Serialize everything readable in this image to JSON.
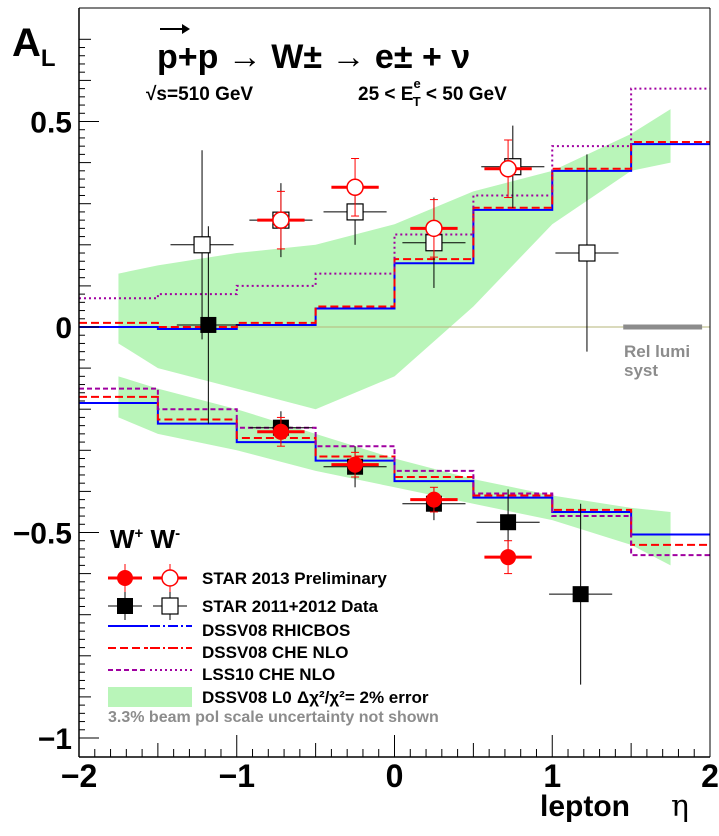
{
  "chart_data": {
    "type": "scatter",
    "title": "p+p → W± → e± + ν",
    "energy": "√s=510 GeV",
    "et_cut": "25 < E",
    "et_sup": "e",
    "et_sub": "T",
    "et_tail": " < 50 GeV",
    "ylabel": "A",
    "ylabel_sub": "L",
    "xlabel": "lepton",
    "xlabel_sym": "η",
    "xlim": [
      -2,
      2
    ],
    "ylim": [
      -1.0,
      0.7
    ],
    "xticks": [
      -2,
      -1,
      0,
      1,
      2
    ],
    "xtick_labels": [
      "−2",
      "−1",
      "0",
      "1",
      "2"
    ],
    "yticks": [
      -1,
      -0.5,
      0,
      0.5
    ],
    "ytick_labels": [
      "−1",
      "−0.5",
      "0",
      "0.5"
    ],
    "legend_header": "W",
    "legend_header_sup_plus": "+",
    "legend_header_2": " W",
    "legend_header_sup_minus": "-",
    "rel_lumi_label_1": "Rel lumi",
    "rel_lumi_label_2": "syst",
    "rel_lumi_y": 0.0,
    "rel_lumi_x": [
      1.45,
      1.95
    ],
    "footnote": "3.3% beam pol scale uncertainty not shown",
    "colors": {
      "star2013": "#ff0000",
      "star2011": "#000000",
      "rhicbos": "#0000ff",
      "che": "#ff0000",
      "lss10": "#a000a0",
      "band": "#b9f5b9",
      "rel_lumi": "#8c8c8c"
    },
    "legend": [
      {
        "key": "star2013",
        "label": "STAR 2013 Preliminary"
      },
      {
        "key": "star2011",
        "label": "STAR 2011+2012 Data"
      },
      {
        "key": "rhicbos",
        "label": "DSSV08  RHICBOS"
      },
      {
        "key": "che",
        "label": "DSSV08  CHE NLO"
      },
      {
        "key": "lss10",
        "label": "LSS10 CHE NLO"
      },
      {
        "key": "band",
        "label": "DSSV08 L0",
        "extra": "Δχ²/χ²= 2% error"
      }
    ],
    "series": [
      {
        "name": "STAR 2013 Preliminary",
        "charge": "W+",
        "marker": "filled-circle",
        "points": [
          {
            "x": -0.72,
            "y": -0.255,
            "xerr": 0.15,
            "yerr": 0.035
          },
          {
            "x": -0.25,
            "y": -0.335,
            "xerr": 0.15,
            "yerr": 0.03
          },
          {
            "x": 0.25,
            "y": -0.42,
            "xerr": 0.15,
            "yerr": 0.03
          },
          {
            "x": 0.72,
            "y": -0.56,
            "xerr": 0.15,
            "yerr": 0.04
          }
        ]
      },
      {
        "name": "STAR 2013 Preliminary",
        "charge": "W-",
        "marker": "open-circle",
        "points": [
          {
            "x": -0.72,
            "y": 0.26,
            "xerr": 0.15,
            "yerr": 0.07
          },
          {
            "x": -0.25,
            "y": 0.34,
            "xerr": 0.15,
            "yerr": 0.07
          },
          {
            "x": 0.25,
            "y": 0.24,
            "xerr": 0.15,
            "yerr": 0.07
          },
          {
            "x": 0.72,
            "y": 0.385,
            "xerr": 0.15,
            "yerr": 0.07
          }
        ]
      },
      {
        "name": "STAR 2011+2012 Data",
        "charge": "W+",
        "marker": "filled-square",
        "points": [
          {
            "x": -1.18,
            "y": 0.005,
            "xerr": 0.2,
            "yerr": 0.24
          },
          {
            "x": -0.72,
            "y": -0.245,
            "xerr": 0.2,
            "yerr": 0.04
          },
          {
            "x": -0.25,
            "y": -0.34,
            "xerr": 0.2,
            "yerr": 0.05
          },
          {
            "x": 0.25,
            "y": -0.43,
            "xerr": 0.2,
            "yerr": 0.04
          },
          {
            "x": 0.72,
            "y": -0.475,
            "xerr": 0.2,
            "yerr": 0.08
          },
          {
            "x": 1.18,
            "y": -0.65,
            "xerr": 0.2,
            "yerr": 0.22
          }
        ]
      },
      {
        "name": "STAR 2011+2012 Data",
        "charge": "W-",
        "marker": "open-square",
        "points": [
          {
            "x": -1.22,
            "y": 0.2,
            "xerr": 0.2,
            "yerr": 0.23
          },
          {
            "x": -0.72,
            "y": 0.26,
            "xerr": 0.2,
            "yerr": 0.09
          },
          {
            "x": -0.25,
            "y": 0.28,
            "xerr": 0.2,
            "yerr": 0.08
          },
          {
            "x": 0.25,
            "y": 0.205,
            "xerr": 0.2,
            "yerr": 0.11
          },
          {
            "x": 0.75,
            "y": 0.39,
            "xerr": 0.2,
            "yerr": 0.1
          },
          {
            "x": 1.22,
            "y": 0.18,
            "xerr": 0.2,
            "yerr": 0.24
          }
        ]
      }
    ],
    "curves": [
      {
        "key": "rhicbos",
        "dash": "",
        "charge": "W-",
        "edges": [
          -2,
          -1.5,
          -1,
          -0.5,
          0,
          0.5,
          1,
          1.5,
          2
        ],
        "values": [
          0.0,
          -0.005,
          0.005,
          0.045,
          0.155,
          0.285,
          0.38,
          0.445
        ]
      },
      {
        "key": "rhicbos",
        "dash": "",
        "charge": "W+",
        "edges": [
          -2,
          -1.5,
          -1,
          -0.5,
          0,
          0.5,
          1,
          1.5,
          2
        ],
        "values": [
          -0.185,
          -0.235,
          -0.28,
          -0.325,
          -0.375,
          -0.415,
          -0.45,
          -0.505
        ]
      },
      {
        "key": "che",
        "dash": "8,4",
        "charge": "W-",
        "edges": [
          -2,
          -1.5,
          -1,
          -0.5,
          0,
          0.5,
          1,
          1.5,
          2
        ],
        "values": [
          0.01,
          0.0,
          0.01,
          0.05,
          0.165,
          0.29,
          0.385,
          0.45
        ]
      },
      {
        "key": "che",
        "dash": "8,4",
        "charge": "W+",
        "edges": [
          -2,
          -1.5,
          -1,
          -0.5,
          0,
          0.5,
          1,
          1.5,
          2
        ],
        "values": [
          -0.17,
          -0.225,
          -0.27,
          -0.315,
          -0.365,
          -0.41,
          -0.445,
          -0.53
        ]
      },
      {
        "key": "lss10",
        "dash": "2,3",
        "charge": "W-",
        "edges": [
          -2,
          -1.5,
          -1,
          -0.5,
          0,
          0.5,
          1,
          1.5,
          2
        ],
        "values": [
          0.07,
          0.08,
          0.1,
          0.13,
          0.225,
          0.32,
          0.44,
          0.58
        ]
      },
      {
        "key": "lss10",
        "dash": "5,3",
        "charge": "W+",
        "edges": [
          -2,
          -1.5,
          -1,
          -0.5,
          0,
          0.5,
          1,
          1.5,
          2
        ],
        "values": [
          -0.15,
          -0.2,
          -0.245,
          -0.29,
          -0.35,
          -0.405,
          -0.46,
          -0.555
        ]
      }
    ],
    "bands": [
      {
        "charge": "W-",
        "x": [
          -1.75,
          -1.5,
          -1.0,
          -0.5,
          0.0,
          0.5,
          1.0,
          1.5,
          1.75
        ],
        "upper": [
          0.13,
          0.15,
          0.18,
          0.2,
          0.25,
          0.33,
          0.38,
          0.47,
          0.53
        ],
        "lower": [
          -0.04,
          -0.1,
          -0.15,
          -0.2,
          -0.12,
          0.05,
          0.25,
          0.38,
          0.4
        ]
      },
      {
        "charge": "W+",
        "x": [
          -1.75,
          -1.5,
          -1.0,
          -0.5,
          0.0,
          0.5,
          1.0,
          1.5,
          1.75
        ],
        "upper": [
          -0.12,
          -0.15,
          -0.2,
          -0.26,
          -0.32,
          -0.37,
          -0.41,
          -0.44,
          -0.45
        ],
        "lower": [
          -0.22,
          -0.26,
          -0.3,
          -0.35,
          -0.39,
          -0.43,
          -0.47,
          -0.53,
          -0.58
        ]
      }
    ]
  }
}
